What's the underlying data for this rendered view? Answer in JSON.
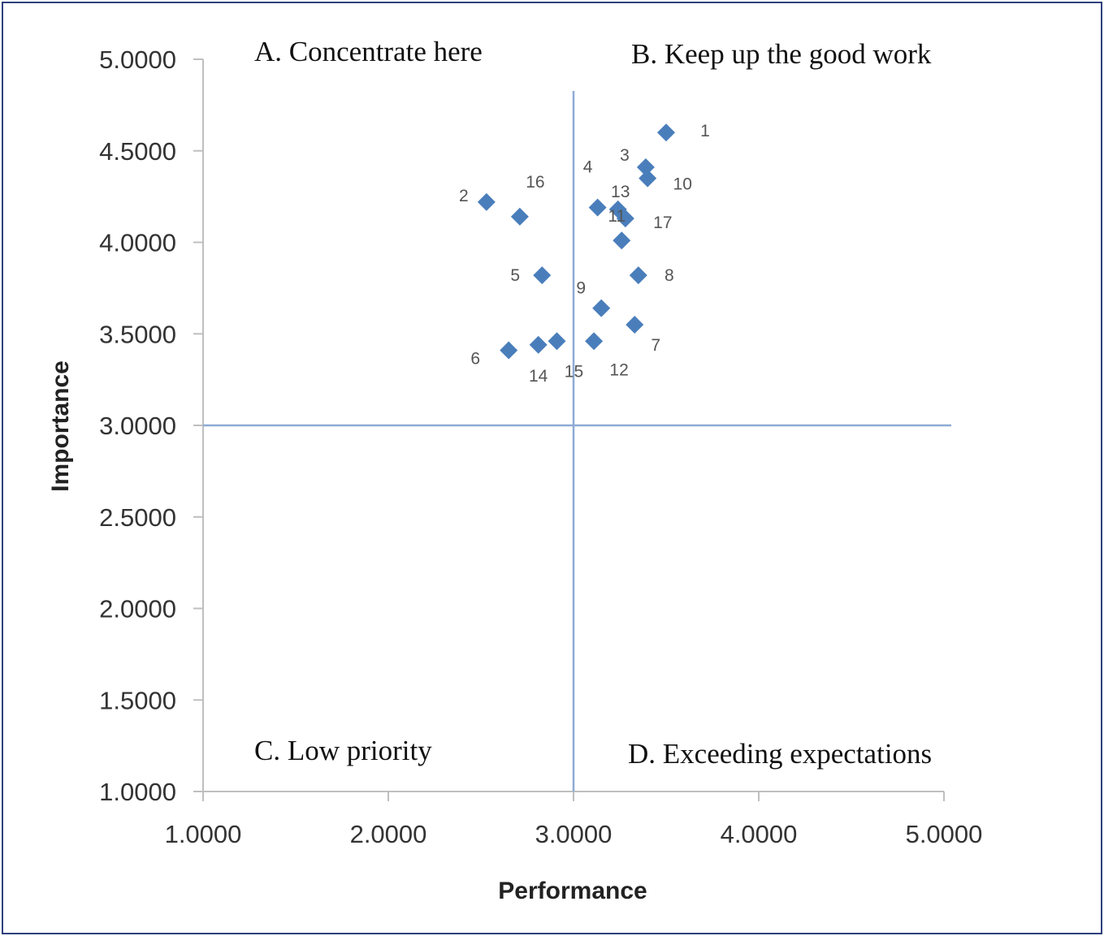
{
  "chart_data": {
    "type": "scatter",
    "xlabel": "Performance",
    "ylabel": "Importance",
    "xlim": [
      1.0,
      5.0
    ],
    "ylim": [
      1.0,
      5.0
    ],
    "x_ticks": [
      "1.0000",
      "2.0000",
      "3.0000",
      "4.0000",
      "5.0000"
    ],
    "y_ticks": [
      "1.0000",
      "1.5000",
      "2.0000",
      "2.5000",
      "3.0000",
      "3.5000",
      "4.0000",
      "4.5000",
      "5.0000"
    ],
    "quadrant_lines": {
      "x": 3.0,
      "y": 3.0
    },
    "marker_color": "#4a7ebb",
    "divider_color": "#8eaad4",
    "points": [
      {
        "label": "1",
        "x": 3.5,
        "y": 4.6
      },
      {
        "label": "2",
        "x": 2.53,
        "y": 4.22
      },
      {
        "label": "3",
        "x": 3.39,
        "y": 4.41
      },
      {
        "label": "4",
        "x": 3.13,
        "y": 4.19
      },
      {
        "label": "5",
        "x": 2.83,
        "y": 3.82
      },
      {
        "label": "6",
        "x": 2.65,
        "y": 3.41
      },
      {
        "label": "7",
        "x": 3.33,
        "y": 3.55
      },
      {
        "label": "8",
        "x": 3.35,
        "y": 3.82
      },
      {
        "label": "9",
        "x": 3.15,
        "y": 3.64
      },
      {
        "label": "10",
        "x": 3.4,
        "y": 4.35
      },
      {
        "label": "11",
        "x": 3.26,
        "y": 4.01
      },
      {
        "label": "12",
        "x": 3.11,
        "y": 3.46
      },
      {
        "label": "13",
        "x": 3.24,
        "y": 4.18
      },
      {
        "label": "14",
        "x": 2.81,
        "y": 3.44
      },
      {
        "label": "15",
        "x": 2.91,
        "y": 3.46
      },
      {
        "label": "16",
        "x": 2.71,
        "y": 4.14
      },
      {
        "label": "17",
        "x": 3.28,
        "y": 4.13
      }
    ],
    "quadrants": {
      "a": "A. Concentrate here",
      "b": "B. Keep up the good work",
      "c": "C. Low priority",
      "d": "D. Exceeding expectations"
    }
  }
}
